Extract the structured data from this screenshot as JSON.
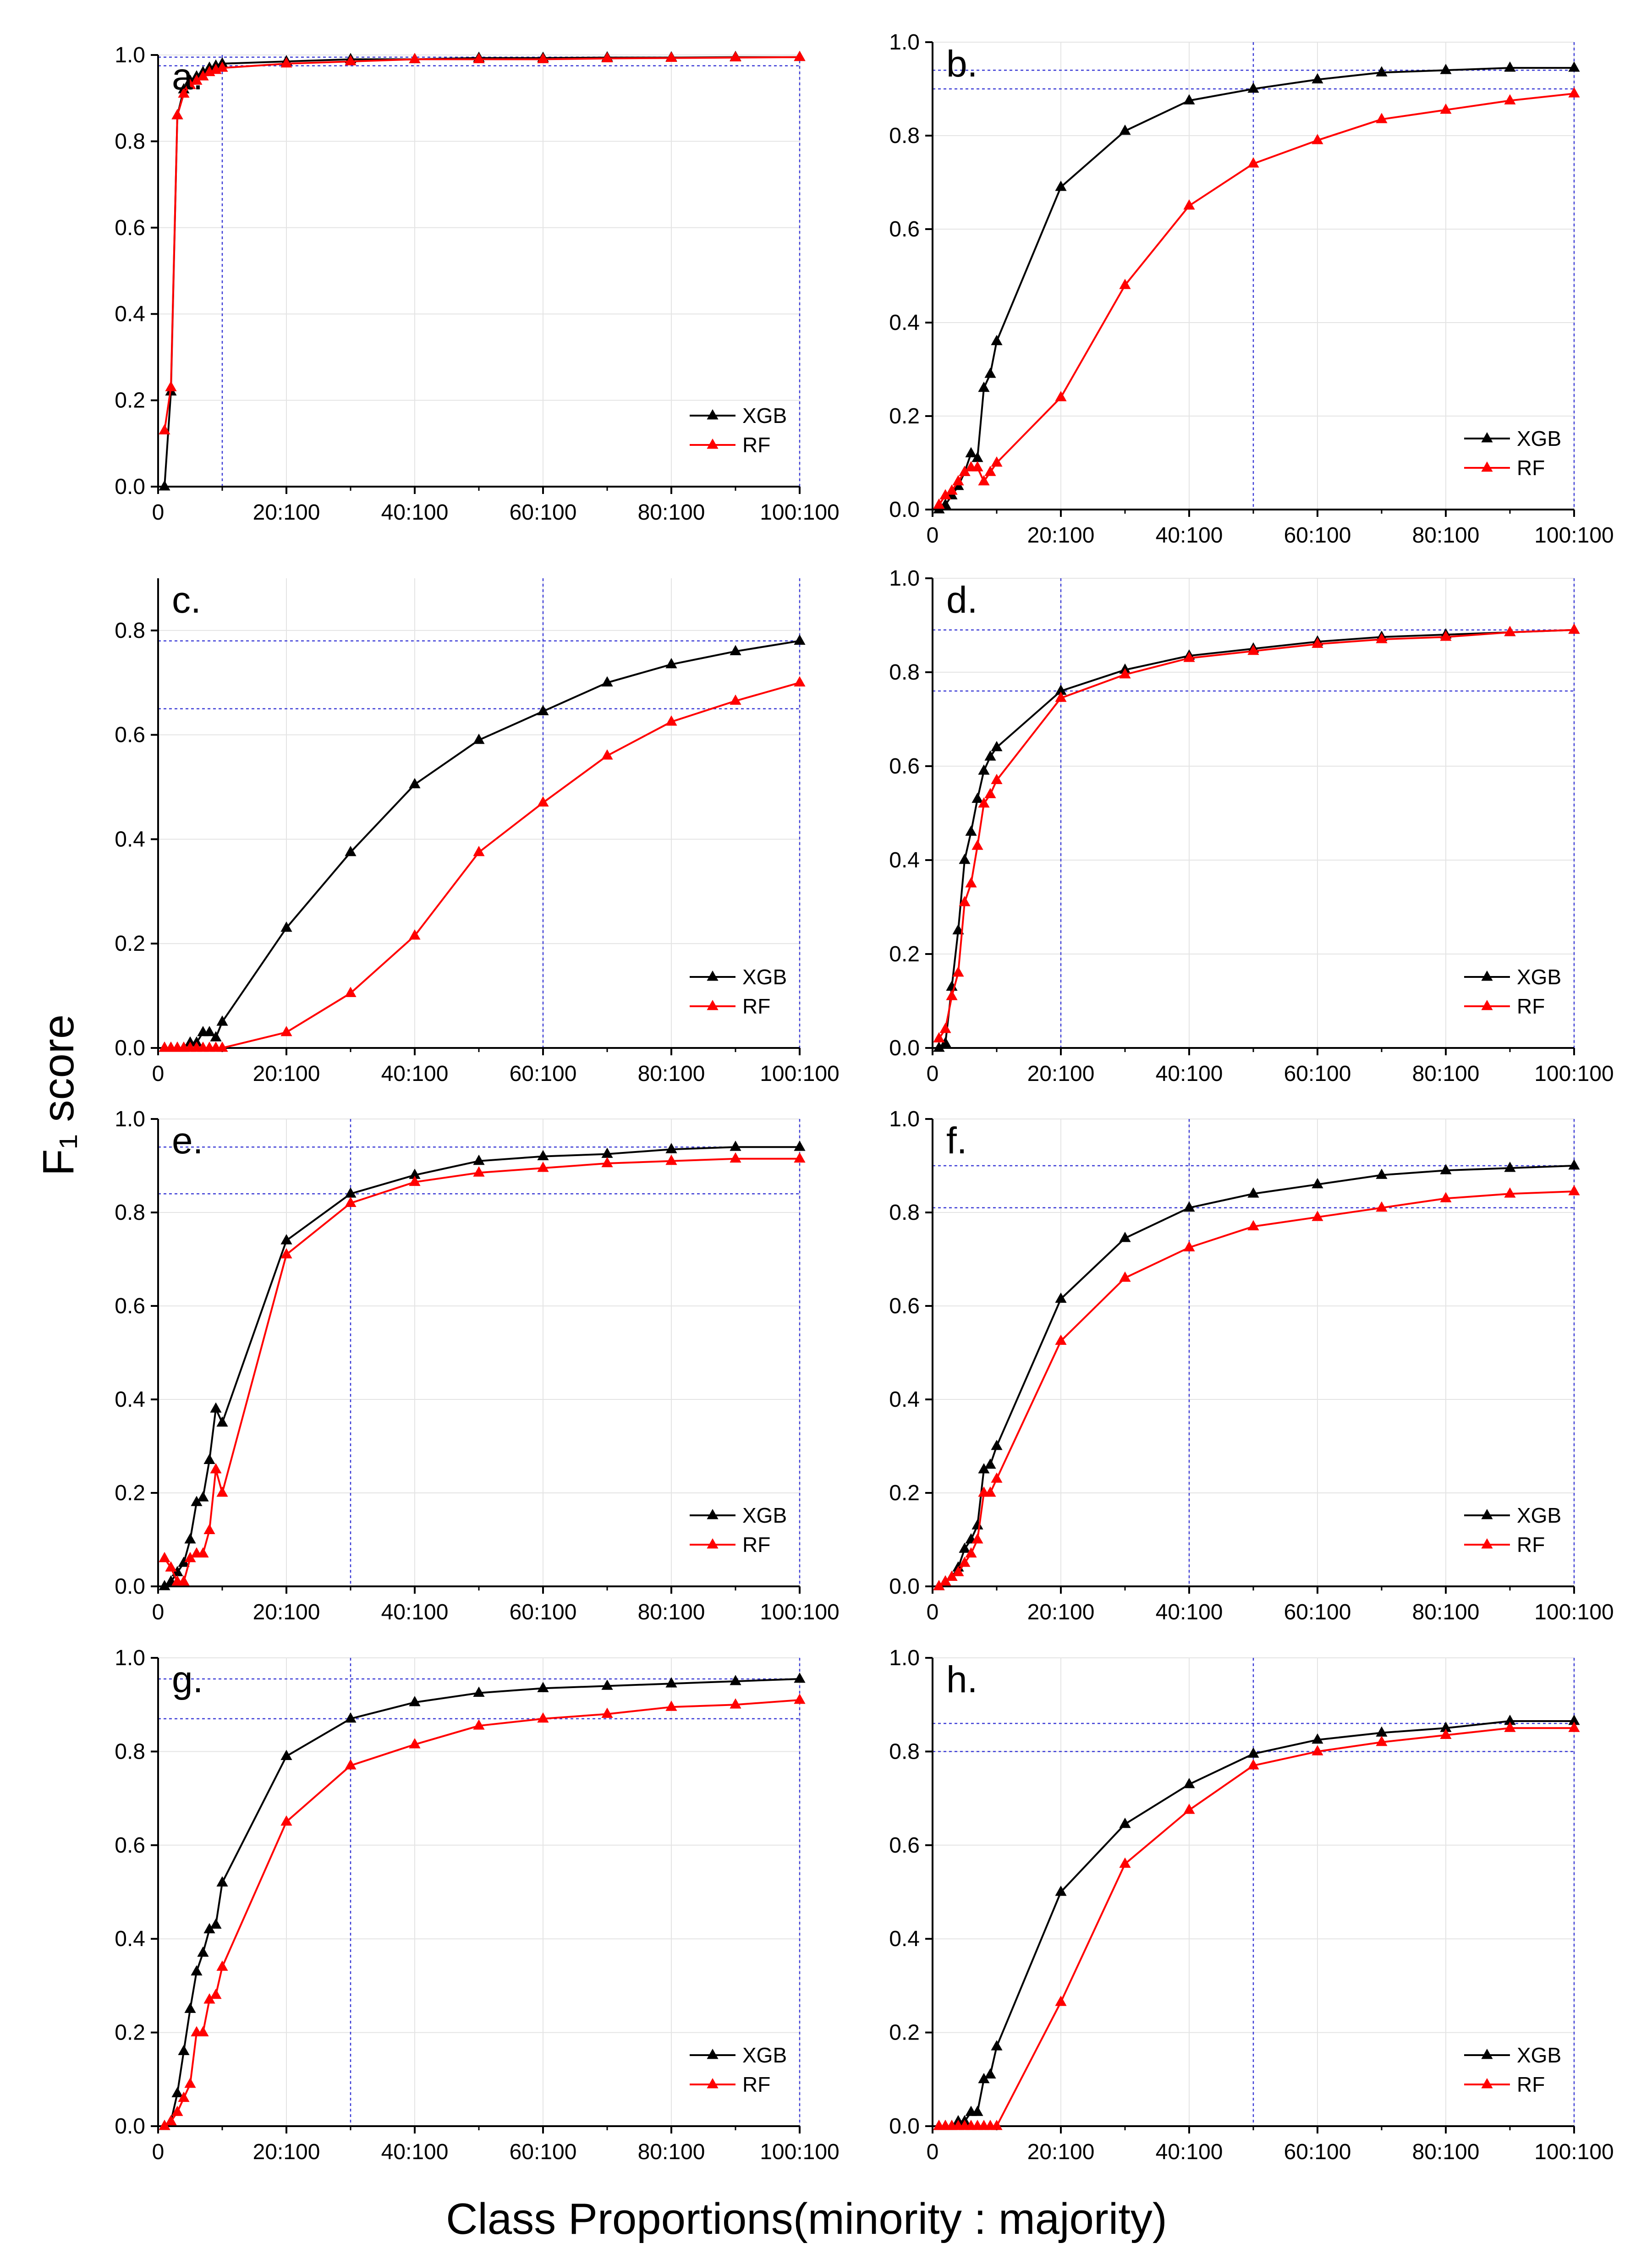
{
  "figure": {
    "ylabel": "F₁ score",
    "xlabel": "Class Proportions(minority : majority)"
  },
  "chart_data": [
    {
      "type": "line",
      "panel": "a.",
      "xlim": [
        0,
        100
      ],
      "ylim": [
        0,
        1.0
      ],
      "yticks": [
        0.0,
        0.2,
        0.4,
        0.6,
        0.8,
        1.0
      ],
      "xticks": [
        0,
        20,
        40,
        60,
        80,
        100
      ],
      "xtick_labels": [
        "0",
        "20:100",
        "40:100",
        "60:100",
        "80:100",
        "100:100"
      ],
      "ref_v": [
        10,
        100
      ],
      "ref_h": [
        0.995,
        0.975
      ],
      "legend": [
        "XGB",
        "RF"
      ],
      "series": [
        {
          "name": "XGB",
          "color": "#000000",
          "x": [
            1,
            2,
            3,
            4,
            5,
            6,
            7,
            8,
            9,
            10,
            20,
            30,
            40,
            50,
            60,
            70,
            80,
            90,
            100
          ],
          "y": [
            0.0,
            0.22,
            0.86,
            0.92,
            0.94,
            0.95,
            0.96,
            0.97,
            0.975,
            0.98,
            0.985,
            0.99,
            0.99,
            0.993,
            0.993,
            0.994,
            0.994,
            0.995,
            0.995
          ]
        },
        {
          "name": "RF",
          "color": "#ff0000",
          "x": [
            1,
            2,
            3,
            4,
            5,
            6,
            7,
            8,
            9,
            10,
            20,
            30,
            40,
            50,
            60,
            70,
            80,
            90,
            100
          ],
          "y": [
            0.13,
            0.23,
            0.86,
            0.91,
            0.93,
            0.94,
            0.95,
            0.96,
            0.965,
            0.97,
            0.98,
            0.985,
            0.99,
            0.99,
            0.99,
            0.992,
            0.993,
            0.994,
            0.995
          ]
        }
      ]
    },
    {
      "type": "line",
      "panel": "b.",
      "xlim": [
        0,
        100
      ],
      "ylim": [
        0,
        1.0
      ],
      "yticks": [
        0.0,
        0.2,
        0.4,
        0.6,
        0.8,
        1.0
      ],
      "xticks": [
        0,
        20,
        40,
        60,
        80,
        100
      ],
      "xtick_labels": [
        "0",
        "20:100",
        "40:100",
        "60:100",
        "80:100",
        "100:100"
      ],
      "ref_v": [
        50,
        100
      ],
      "ref_h": [
        0.94,
        0.9
      ],
      "legend": [
        "XGB",
        "RF"
      ],
      "series": [
        {
          "name": "XGB",
          "color": "#000000",
          "x": [
            1,
            2,
            3,
            4,
            5,
            6,
            7,
            8,
            9,
            10,
            20,
            30,
            40,
            50,
            60,
            70,
            80,
            90,
            100
          ],
          "y": [
            0.0,
            0.01,
            0.03,
            0.05,
            0.08,
            0.12,
            0.11,
            0.26,
            0.29,
            0.36,
            0.69,
            0.81,
            0.875,
            0.9,
            0.92,
            0.935,
            0.94,
            0.945,
            0.945
          ]
        },
        {
          "name": "RF",
          "color": "#ff0000",
          "x": [
            1,
            2,
            3,
            4,
            5,
            6,
            7,
            8,
            9,
            10,
            20,
            30,
            40,
            50,
            60,
            70,
            80,
            90,
            100
          ],
          "y": [
            0.01,
            0.03,
            0.04,
            0.06,
            0.08,
            0.09,
            0.09,
            0.06,
            0.08,
            0.1,
            0.24,
            0.48,
            0.65,
            0.74,
            0.79,
            0.835,
            0.855,
            0.875,
            0.89
          ]
        }
      ]
    },
    {
      "type": "line",
      "panel": "c.",
      "xlim": [
        0,
        100
      ],
      "ylim": [
        0,
        0.9
      ],
      "yticks": [
        0.0,
        0.2,
        0.4,
        0.6,
        0.8
      ],
      "xticks": [
        0,
        20,
        40,
        60,
        80,
        100
      ],
      "xtick_labels": [
        "0",
        "20:100",
        "40:100",
        "60:100",
        "80:100",
        "100:100"
      ],
      "ref_v": [
        60,
        100
      ],
      "ref_h": [
        0.78,
        0.65
      ],
      "legend": [
        "XGB",
        "RF"
      ],
      "series": [
        {
          "name": "XGB",
          "color": "#000000",
          "x": [
            1,
            2,
            3,
            4,
            5,
            6,
            7,
            8,
            9,
            10,
            20,
            30,
            40,
            50,
            60,
            70,
            80,
            90,
            100
          ],
          "y": [
            0.0,
            0.0,
            0.0,
            0.0,
            0.01,
            0.01,
            0.03,
            0.03,
            0.02,
            0.05,
            0.23,
            0.375,
            0.505,
            0.59,
            0.645,
            0.7,
            0.735,
            0.76,
            0.78
          ]
        },
        {
          "name": "RF",
          "color": "#ff0000",
          "x": [
            1,
            2,
            3,
            4,
            5,
            6,
            7,
            8,
            9,
            10,
            20,
            30,
            40,
            50,
            60,
            70,
            80,
            90,
            100
          ],
          "y": [
            0.0,
            0.0,
            0.0,
            0.0,
            0.0,
            0.0,
            0.0,
            0.0,
            0.0,
            0.0,
            0.03,
            0.105,
            0.215,
            0.375,
            0.47,
            0.56,
            0.625,
            0.665,
            0.7
          ]
        }
      ]
    },
    {
      "type": "line",
      "panel": "d.",
      "xlim": [
        0,
        100
      ],
      "ylim": [
        0,
        1.0
      ],
      "yticks": [
        0.0,
        0.2,
        0.4,
        0.6,
        0.8,
        1.0
      ],
      "xticks": [
        0,
        20,
        40,
        60,
        80,
        100
      ],
      "xtick_labels": [
        "0",
        "20:100",
        "40:100",
        "60:100",
        "80:100",
        "100:100"
      ],
      "ref_v": [
        20,
        100
      ],
      "ref_h": [
        0.89,
        0.76
      ],
      "legend": [
        "XGB",
        "RF"
      ],
      "series": [
        {
          "name": "XGB",
          "color": "#000000",
          "x": [
            1,
            2,
            3,
            4,
            5,
            6,
            7,
            8,
            9,
            10,
            20,
            30,
            40,
            50,
            60,
            70,
            80,
            90,
            100
          ],
          "y": [
            0.0,
            0.01,
            0.13,
            0.25,
            0.4,
            0.46,
            0.53,
            0.59,
            0.62,
            0.64,
            0.76,
            0.805,
            0.835,
            0.85,
            0.865,
            0.875,
            0.88,
            0.885,
            0.89
          ]
        },
        {
          "name": "RF",
          "color": "#ff0000",
          "x": [
            1,
            2,
            3,
            4,
            5,
            6,
            7,
            8,
            9,
            10,
            20,
            30,
            40,
            50,
            60,
            70,
            80,
            90,
            100
          ],
          "y": [
            0.02,
            0.04,
            0.11,
            0.16,
            0.31,
            0.35,
            0.43,
            0.52,
            0.54,
            0.57,
            0.745,
            0.795,
            0.83,
            0.845,
            0.86,
            0.87,
            0.875,
            0.885,
            0.89
          ]
        }
      ]
    },
    {
      "type": "line",
      "panel": "e.",
      "xlim": [
        0,
        100
      ],
      "ylim": [
        0,
        1.0
      ],
      "yticks": [
        0.0,
        0.2,
        0.4,
        0.6,
        0.8,
        1.0
      ],
      "xticks": [
        0,
        20,
        40,
        60,
        80,
        100
      ],
      "xtick_labels": [
        "0",
        "20:100",
        "40:100",
        "60:100",
        "80:100",
        "100:100"
      ],
      "ref_v": [
        30,
        100
      ],
      "ref_h": [
        0.94,
        0.84
      ],
      "legend": [
        "XGB",
        "RF"
      ],
      "series": [
        {
          "name": "XGB",
          "color": "#000000",
          "x": [
            1,
            2,
            3,
            4,
            5,
            6,
            7,
            8,
            9,
            10,
            20,
            30,
            40,
            50,
            60,
            70,
            80,
            90,
            100
          ],
          "y": [
            0.0,
            0.01,
            0.03,
            0.05,
            0.1,
            0.18,
            0.19,
            0.27,
            0.38,
            0.35,
            0.74,
            0.84,
            0.88,
            0.91,
            0.92,
            0.925,
            0.935,
            0.94,
            0.94
          ]
        },
        {
          "name": "RF",
          "color": "#ff0000",
          "x": [
            1,
            2,
            3,
            4,
            5,
            6,
            7,
            8,
            9,
            10,
            20,
            30,
            40,
            50,
            60,
            70,
            80,
            90,
            100
          ],
          "y": [
            0.06,
            0.04,
            0.01,
            0.01,
            0.06,
            0.07,
            0.07,
            0.12,
            0.25,
            0.2,
            0.71,
            0.82,
            0.865,
            0.885,
            0.895,
            0.905,
            0.91,
            0.915,
            0.915
          ]
        }
      ]
    },
    {
      "type": "line",
      "panel": "f.",
      "xlim": [
        0,
        100
      ],
      "ylim": [
        0,
        1.0
      ],
      "yticks": [
        0.0,
        0.2,
        0.4,
        0.6,
        0.8,
        1.0
      ],
      "xticks": [
        0,
        20,
        40,
        60,
        80,
        100
      ],
      "xtick_labels": [
        "0",
        "20:100",
        "40:100",
        "60:100",
        "80:100",
        "100:100"
      ],
      "ref_v": [
        40,
        100
      ],
      "ref_h": [
        0.9,
        0.81
      ],
      "legend": [
        "XGB",
        "RF"
      ],
      "series": [
        {
          "name": "XGB",
          "color": "#000000",
          "x": [
            1,
            2,
            3,
            4,
            5,
            6,
            7,
            8,
            9,
            10,
            20,
            30,
            40,
            50,
            60,
            70,
            80,
            90,
            100
          ],
          "y": [
            0.0,
            0.01,
            0.02,
            0.04,
            0.08,
            0.1,
            0.13,
            0.25,
            0.26,
            0.3,
            0.615,
            0.745,
            0.81,
            0.84,
            0.86,
            0.88,
            0.89,
            0.895,
            0.9
          ]
        },
        {
          "name": "RF",
          "color": "#ff0000",
          "x": [
            1,
            2,
            3,
            4,
            5,
            6,
            7,
            8,
            9,
            10,
            20,
            30,
            40,
            50,
            60,
            70,
            80,
            90,
            100
          ],
          "y": [
            0.0,
            0.01,
            0.02,
            0.03,
            0.05,
            0.07,
            0.1,
            0.2,
            0.2,
            0.23,
            0.525,
            0.66,
            0.725,
            0.77,
            0.79,
            0.81,
            0.83,
            0.84,
            0.845
          ]
        }
      ]
    },
    {
      "type": "line",
      "panel": "g.",
      "xlim": [
        0,
        100
      ],
      "ylim": [
        0,
        1.0
      ],
      "yticks": [
        0.0,
        0.2,
        0.4,
        0.6,
        0.8,
        1.0
      ],
      "xticks": [
        0,
        20,
        40,
        60,
        80,
        100
      ],
      "xtick_labels": [
        "0",
        "20:100",
        "40:100",
        "60:100",
        "80:100",
        "100:100"
      ],
      "ref_v": [
        30,
        100
      ],
      "ref_h": [
        0.955,
        0.87
      ],
      "legend": [
        "XGB",
        "RF"
      ],
      "series": [
        {
          "name": "XGB",
          "color": "#000000",
          "x": [
            1,
            2,
            3,
            4,
            5,
            6,
            7,
            8,
            9,
            10,
            20,
            30,
            40,
            50,
            60,
            70,
            80,
            90,
            100
          ],
          "y": [
            0.0,
            0.01,
            0.07,
            0.16,
            0.25,
            0.33,
            0.37,
            0.42,
            0.43,
            0.52,
            0.79,
            0.87,
            0.905,
            0.925,
            0.935,
            0.94,
            0.945,
            0.95,
            0.955
          ]
        },
        {
          "name": "RF",
          "color": "#ff0000",
          "x": [
            1,
            2,
            3,
            4,
            5,
            6,
            7,
            8,
            9,
            10,
            20,
            30,
            40,
            50,
            60,
            70,
            80,
            90,
            100
          ],
          "y": [
            0.0,
            0.01,
            0.03,
            0.06,
            0.09,
            0.2,
            0.2,
            0.27,
            0.28,
            0.34,
            0.65,
            0.77,
            0.815,
            0.855,
            0.87,
            0.88,
            0.895,
            0.9,
            0.91
          ]
        }
      ]
    },
    {
      "type": "line",
      "panel": "h.",
      "xlim": [
        0,
        100
      ],
      "ylim": [
        0,
        1.0
      ],
      "yticks": [
        0.0,
        0.2,
        0.4,
        0.6,
        0.8,
        1.0
      ],
      "xticks": [
        0,
        20,
        40,
        60,
        80,
        100
      ],
      "xtick_labels": [
        "0",
        "20:100",
        "40:100",
        "60:100",
        "80:100",
        "100:100"
      ],
      "ref_v": [
        50,
        100
      ],
      "ref_h": [
        0.86,
        0.8
      ],
      "legend": [
        "XGB",
        "RF"
      ],
      "series": [
        {
          "name": "XGB",
          "color": "#000000",
          "x": [
            1,
            2,
            3,
            4,
            5,
            6,
            7,
            8,
            9,
            10,
            20,
            30,
            40,
            50,
            60,
            70,
            80,
            90,
            100
          ],
          "y": [
            0.0,
            0.0,
            0.0,
            0.01,
            0.01,
            0.03,
            0.03,
            0.1,
            0.11,
            0.17,
            0.5,
            0.645,
            0.73,
            0.795,
            0.825,
            0.84,
            0.85,
            0.865,
            0.865
          ]
        },
        {
          "name": "RF",
          "color": "#ff0000",
          "x": [
            1,
            2,
            3,
            4,
            5,
            6,
            7,
            8,
            9,
            10,
            20,
            30,
            40,
            50,
            60,
            70,
            80,
            90,
            100
          ],
          "y": [
            0.0,
            0.0,
            0.0,
            0.0,
            0.0,
            0.0,
            0.0,
            0.0,
            0.0,
            0.0,
            0.265,
            0.56,
            0.675,
            0.77,
            0.8,
            0.82,
            0.835,
            0.85,
            0.85
          ]
        }
      ]
    }
  ]
}
